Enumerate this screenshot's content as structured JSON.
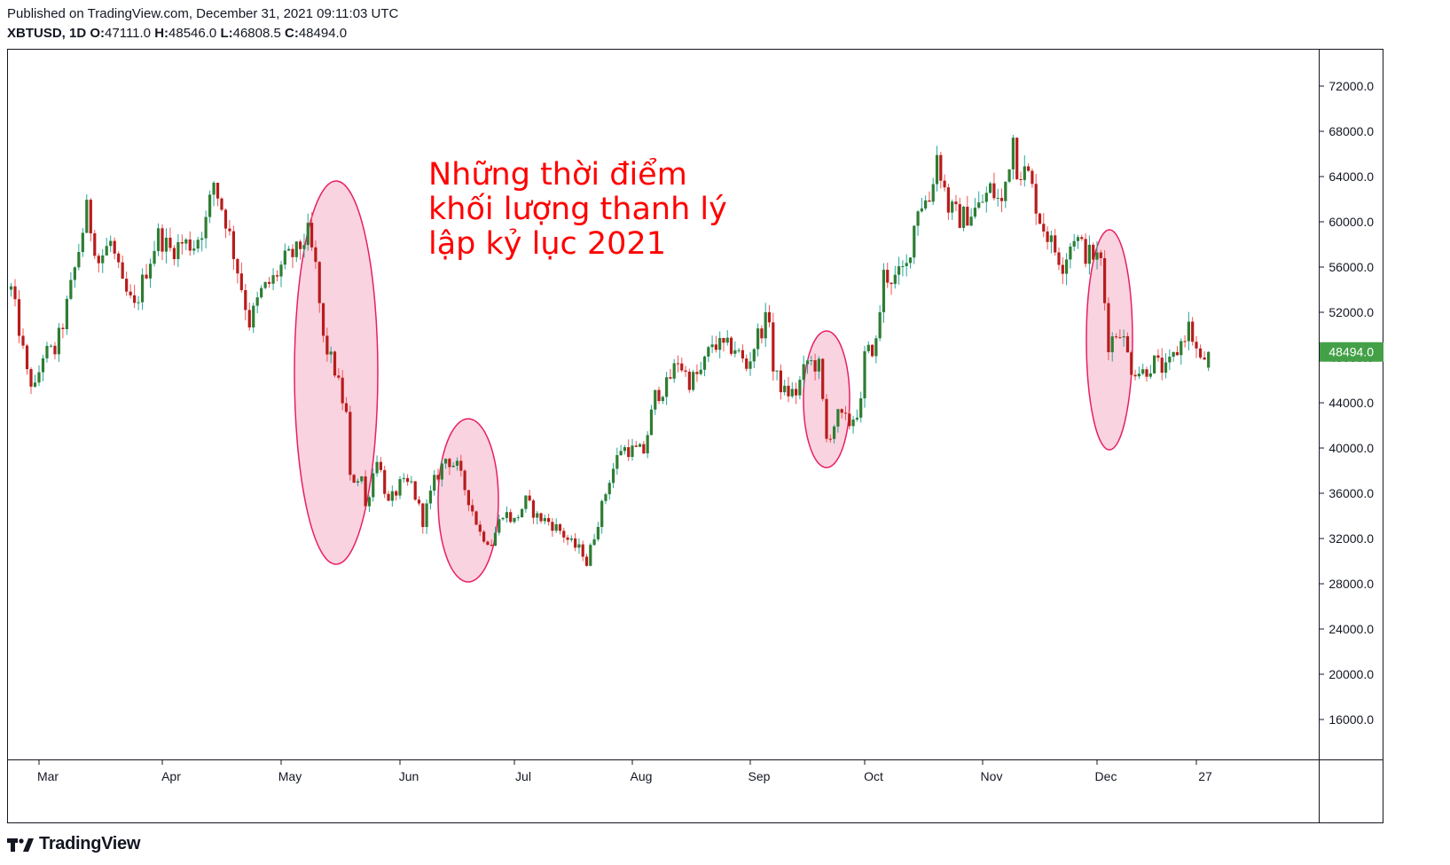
{
  "header": {
    "published": "Published on TradingView.com, December 31, 2021 09:11:03 UTC",
    "symbol": "XBTUSD, 1D",
    "o_label": "O:",
    "o_value": "47111.0",
    "h_label": "H:",
    "h_value": "48546.0",
    "l_label": "L:",
    "l_value": "46808.5",
    "c_label": "C:",
    "c_value": "48494.0"
  },
  "footer": {
    "brand": "TradingView"
  },
  "colors": {
    "up": "#26a69a",
    "down": "#ef5350",
    "upBody": "#2e7d32",
    "downBody": "#b71c1c",
    "ellipseStroke": "#e91e63",
    "ellipseFill": "#f8bbd0",
    "annotation": "#ff0000",
    "priceTag": "#43a047"
  },
  "chart_data": {
    "type": "candlestick",
    "symbol": "XBTUSD",
    "interval": "1D",
    "y_ticks": [
      "16000.0",
      "20000.0",
      "24000.0",
      "28000.0",
      "32000.0",
      "36000.0",
      "40000.0",
      "44000.0",
      "48000.0",
      "52000.0",
      "56000.0",
      "60000.0",
      "64000.0",
      "68000.0",
      "72000.0"
    ],
    "ylim": [
      12000,
      75500
    ],
    "x_ticks": [
      "Mar",
      "Apr",
      "May",
      "Jun",
      "Jul",
      "Aug",
      "Sep",
      "Oct",
      "Nov",
      "Dec",
      "27"
    ],
    "last_price": "48494.0",
    "annotation": [
      "Những thời điểm",
      "khối lượng thanh lý",
      "lập kỷ lục 2021"
    ],
    "highlight_ranges": [
      {
        "from": "2021-05-12",
        "to": "2021-05-24"
      },
      {
        "from": "2021-06-17",
        "to": "2021-06-25"
      },
      {
        "from": "2021-09-20",
        "to": "2021-09-26"
      },
      {
        "from": "2021-12-01",
        "to": "2021-12-07"
      }
    ],
    "closes": [
      {
        "date": "2021-02-22",
        "close": 54000
      },
      {
        "date": "2021-02-24",
        "close": 50500
      },
      {
        "date": "2021-02-26",
        "close": 46500
      },
      {
        "date": "2021-02-28",
        "close": 45200
      },
      {
        "date": "2021-03-02",
        "close": 48300
      },
      {
        "date": "2021-03-05",
        "close": 48600
      },
      {
        "date": "2021-03-07",
        "close": 51000
      },
      {
        "date": "2021-03-10",
        "close": 55800
      },
      {
        "date": "2021-03-13",
        "close": 61000
      },
      {
        "date": "2021-03-16",
        "close": 56500
      },
      {
        "date": "2021-03-19",
        "close": 58200
      },
      {
        "date": "2021-03-22",
        "close": 54200
      },
      {
        "date": "2021-03-25",
        "close": 52300
      },
      {
        "date": "2021-03-28",
        "close": 55800
      },
      {
        "date": "2021-03-31",
        "close": 58800
      },
      {
        "date": "2021-04-03",
        "close": 57500
      },
      {
        "date": "2021-04-06",
        "close": 58100
      },
      {
        "date": "2021-04-09",
        "close": 58000
      },
      {
        "date": "2021-04-12",
        "close": 60000
      },
      {
        "date": "2021-04-14",
        "close": 63500
      },
      {
        "date": "2021-04-17",
        "close": 60200
      },
      {
        "date": "2021-04-20",
        "close": 55800
      },
      {
        "date": "2021-04-23",
        "close": 51100
      },
      {
        "date": "2021-04-26",
        "close": 53800
      },
      {
        "date": "2021-04-29",
        "close": 54900
      },
      {
        "date": "2021-05-02",
        "close": 56600
      },
      {
        "date": "2021-05-05",
        "close": 57300
      },
      {
        "date": "2021-05-08",
        "close": 58900
      },
      {
        "date": "2021-05-10",
        "close": 55900
      },
      {
        "date": "2021-05-12",
        "close": 49500
      },
      {
        "date": "2021-05-15",
        "close": 46900
      },
      {
        "date": "2021-05-18",
        "close": 42900
      },
      {
        "date": "2021-05-19",
        "close": 37200
      },
      {
        "date": "2021-05-22",
        "close": 37500
      },
      {
        "date": "2021-05-23",
        "close": 34700
      },
      {
        "date": "2021-05-26",
        "close": 39300
      },
      {
        "date": "2021-05-29",
        "close": 35000
      },
      {
        "date": "2021-06-01",
        "close": 36700
      },
      {
        "date": "2021-06-04",
        "close": 36800
      },
      {
        "date": "2021-06-07",
        "close": 33600
      },
      {
        "date": "2021-06-10",
        "close": 37000
      },
      {
        "date": "2021-06-13",
        "close": 39100
      },
      {
        "date": "2021-06-16",
        "close": 38300
      },
      {
        "date": "2021-06-19",
        "close": 35500
      },
      {
        "date": "2021-06-22",
        "close": 32500
      },
      {
        "date": "2021-06-25",
        "close": 31600
      },
      {
        "date": "2021-06-28",
        "close": 34400
      },
      {
        "date": "2021-07-01",
        "close": 33500
      },
      {
        "date": "2021-07-04",
        "close": 35300
      },
      {
        "date": "2021-07-07",
        "close": 33900
      },
      {
        "date": "2021-07-10",
        "close": 33500
      },
      {
        "date": "2021-07-13",
        "close": 32700
      },
      {
        "date": "2021-07-16",
        "close": 31500
      },
      {
        "date": "2021-07-19",
        "close": 30800
      },
      {
        "date": "2021-07-20",
        "close": 29800
      },
      {
        "date": "2021-07-23",
        "close": 33600
      },
      {
        "date": "2021-07-26",
        "close": 37300
      },
      {
        "date": "2021-07-29",
        "close": 40000
      },
      {
        "date": "2021-08-01",
        "close": 39800
      },
      {
        "date": "2021-08-04",
        "close": 39700
      },
      {
        "date": "2021-08-07",
        "close": 44600
      },
      {
        "date": "2021-08-10",
        "close": 45500
      },
      {
        "date": "2021-08-13",
        "close": 47800
      },
      {
        "date": "2021-08-16",
        "close": 45900
      },
      {
        "date": "2021-08-19",
        "close": 46700
      },
      {
        "date": "2021-08-22",
        "close": 49300
      },
      {
        "date": "2021-08-25",
        "close": 48900
      },
      {
        "date": "2021-08-28",
        "close": 48900
      },
      {
        "date": "2021-08-31",
        "close": 47100
      },
      {
        "date": "2021-09-03",
        "close": 50000
      },
      {
        "date": "2021-09-06",
        "close": 51700
      },
      {
        "date": "2021-09-07",
        "close": 46800
      },
      {
        "date": "2021-09-10",
        "close": 44900
      },
      {
        "date": "2021-09-13",
        "close": 44900
      },
      {
        "date": "2021-09-16",
        "close": 47700
      },
      {
        "date": "2021-09-19",
        "close": 47200
      },
      {
        "date": "2021-09-21",
        "close": 40700
      },
      {
        "date": "2021-09-24",
        "close": 42800
      },
      {
        "date": "2021-09-27",
        "close": 42200
      },
      {
        "date": "2021-09-30",
        "close": 43800
      },
      {
        "date": "2021-10-01",
        "close": 48100
      },
      {
        "date": "2021-10-04",
        "close": 49200
      },
      {
        "date": "2021-10-06",
        "close": 55300
      },
      {
        "date": "2021-10-09",
        "close": 54900
      },
      {
        "date": "2021-10-12",
        "close": 56000
      },
      {
        "date": "2021-10-15",
        "close": 61500
      },
      {
        "date": "2021-10-18",
        "close": 62000
      },
      {
        "date": "2021-10-20",
        "close": 65900
      },
      {
        "date": "2021-10-23",
        "close": 61300
      },
      {
        "date": "2021-10-26",
        "close": 60300
      },
      {
        "date": "2021-10-28",
        "close": 60600
      },
      {
        "date": "2021-10-31",
        "close": 61300
      },
      {
        "date": "2021-11-03",
        "close": 62900
      },
      {
        "date": "2021-11-06",
        "close": 61500
      },
      {
        "date": "2021-11-09",
        "close": 67500
      },
      {
        "date": "2021-11-10",
        "close": 64900
      },
      {
        "date": "2021-11-13",
        "close": 64100
      },
      {
        "date": "2021-11-16",
        "close": 60300
      },
      {
        "date": "2021-11-19",
        "close": 58100
      },
      {
        "date": "2021-11-22",
        "close": 56300
      },
      {
        "date": "2021-11-25",
        "close": 58900
      },
      {
        "date": "2021-11-28",
        "close": 57200
      },
      {
        "date": "2021-11-30",
        "close": 57000
      },
      {
        "date": "2021-12-02",
        "close": 56500
      },
      {
        "date": "2021-12-04",
        "close": 49300
      },
      {
        "date": "2021-12-07",
        "close": 50600
      },
      {
        "date": "2021-12-10",
        "close": 47100
      },
      {
        "date": "2021-12-13",
        "close": 46700
      },
      {
        "date": "2021-12-16",
        "close": 47600
      },
      {
        "date": "2021-12-19",
        "close": 46800
      },
      {
        "date": "2021-12-22",
        "close": 48600
      },
      {
        "date": "2021-12-25",
        "close": 50800
      },
      {
        "date": "2021-12-28",
        "close": 47500
      },
      {
        "date": "2021-12-30",
        "close": 48494
      }
    ]
  }
}
